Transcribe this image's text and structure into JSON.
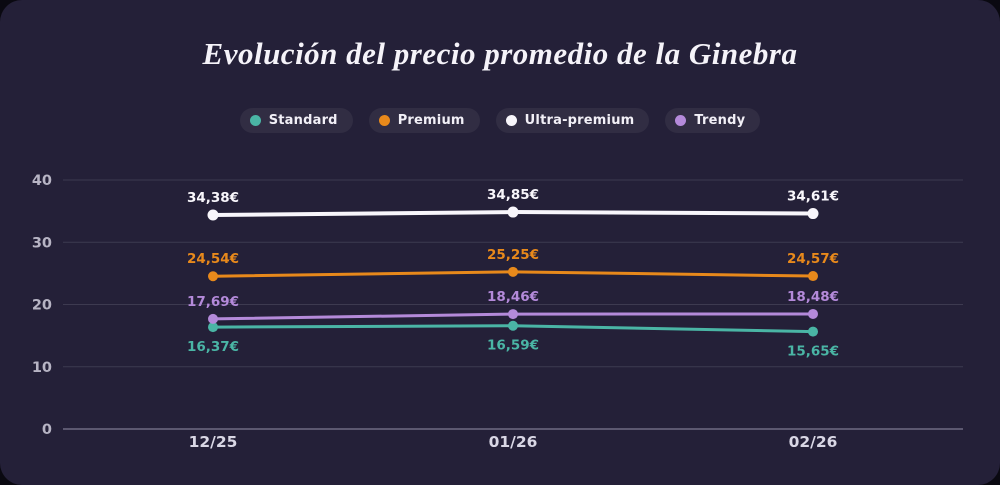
{
  "page": {
    "outer_background": "#0a0911",
    "card_background": "#242038"
  },
  "chart_data": {
    "type": "line",
    "title": "Evolución del precio promedio de la Ginebra",
    "categories": [
      "12/25",
      "01/26",
      "02/26"
    ],
    "y_ticks": [
      0,
      10,
      20,
      30,
      40
    ],
    "ylim": [
      0,
      40
    ],
    "grid": true,
    "legend_position": "top",
    "currency_suffix": "€",
    "series": [
      {
        "name": "Standard",
        "color": "#4ab5a5",
        "values": [
          16.37,
          16.59,
          15.65
        ],
        "display_values": [
          "16,37€",
          "16,59€",
          "15,65€"
        ],
        "label_placement": "below"
      },
      {
        "name": "Premium",
        "color": "#e8891b",
        "values": [
          24.54,
          25.25,
          24.57
        ],
        "display_values": [
          "24,54€",
          "25,25€",
          "24,57€"
        ],
        "label_placement": "above"
      },
      {
        "name": "Ultra-premium",
        "color": "#f8f6fb",
        "values": [
          34.38,
          34.85,
          34.61
        ],
        "display_values": [
          "34,38€",
          "34,85€",
          "34,61€"
        ],
        "label_placement": "above"
      },
      {
        "name": "Trendy",
        "color": "#b48ada",
        "values": [
          17.69,
          18.46,
          18.48
        ],
        "display_values": [
          "17,69€",
          "18,46€",
          "18,48€"
        ],
        "label_placement": "above"
      }
    ]
  }
}
